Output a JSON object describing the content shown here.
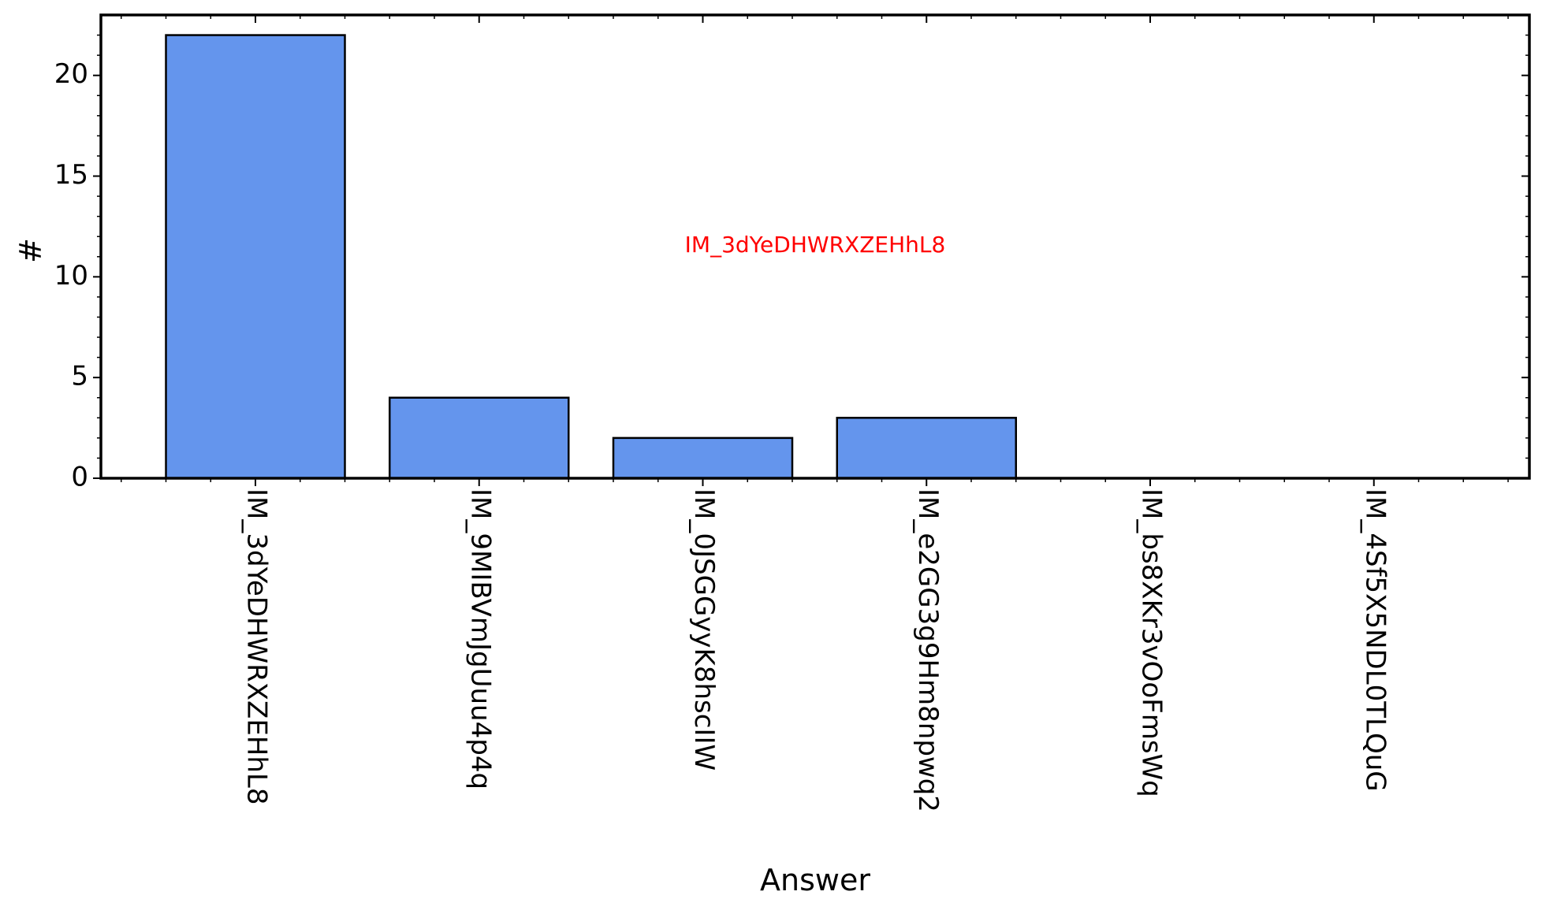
{
  "chart_data": {
    "type": "bar",
    "categories": [
      "IM_3dYeDHWRXZEHhL8",
      "IM_9MIBVmJgUuu4p4q",
      "IM_0JSGGyyK8hscIIW",
      "IM_e2GG3g9Hm8npwq2",
      "IM_bs8XKr3vOoFmsWq",
      "IM_4Sf5X5NDL0TLQuG"
    ],
    "values": [
      22,
      4,
      2,
      3,
      0,
      0
    ],
    "xlabel": "Answer",
    "ylabel": "#",
    "ylim": [
      0,
      23
    ],
    "yticks": [
      0,
      5,
      10,
      15,
      20
    ],
    "annotation": "IM_3dYeDHWRXZEHhL8",
    "bar_color": "#6495ED",
    "edge_color": "#000000",
    "annotation_color": "#FF0000",
    "grid": false,
    "legend": "none"
  }
}
